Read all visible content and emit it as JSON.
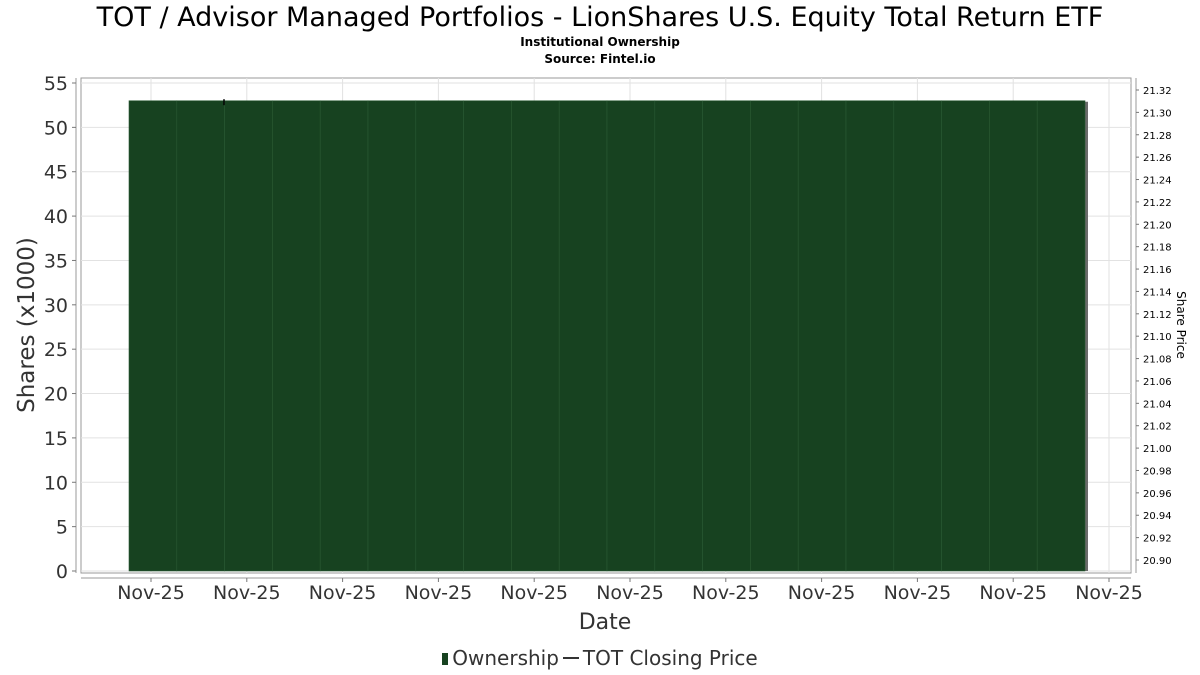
{
  "header": {
    "title": "TOT / Advisor Managed Portfolios - LionShares U.S. Equity Total Return ETF",
    "subtitle": "Institutional Ownership",
    "source": "Source: Fintel.io"
  },
  "legend": {
    "ownership_label": "Ownership",
    "price_label": "TOT Closing Price"
  },
  "colors": {
    "bar_fill": "#174220",
    "bar_shadow": "#6b6b6b",
    "grid": "#e2e2e2",
    "price_line": "#000000"
  },
  "chart_data": {
    "type": "bar",
    "title": "TOT / Advisor Managed Portfolios - LionShares U.S. Equity Total Return ETF",
    "subtitle": "Institutional Ownership",
    "xlabel": "Date",
    "ylabel": "Shares (x1000)",
    "y2label": "Share Price",
    "x_tick_labels": [
      "Nov-25",
      "Nov-25",
      "Nov-25",
      "Nov-25",
      "Nov-25",
      "Nov-25",
      "Nov-25",
      "Nov-25",
      "Nov-25",
      "Nov-25",
      "Nov-25"
    ],
    "ylim": [
      0,
      55
    ],
    "y_ticks": [
      0,
      5,
      10,
      15,
      20,
      25,
      30,
      35,
      40,
      45,
      50,
      55
    ],
    "y2lim": [
      20.89,
      21.33
    ],
    "y2_ticks": [
      "20.90",
      "20.92",
      "20.94",
      "20.96",
      "20.98",
      "21.00",
      "21.02",
      "21.04",
      "21.06",
      "21.08",
      "21.10",
      "21.12",
      "21.14",
      "21.16",
      "21.18",
      "21.20",
      "21.22",
      "21.24",
      "21.26",
      "21.28",
      "21.30",
      "21.32"
    ],
    "series": [
      {
        "name": "Ownership",
        "type": "bar",
        "values": [
          53,
          53,
          53,
          53,
          53,
          53,
          53,
          53,
          53,
          53,
          53,
          53,
          53,
          53,
          53,
          53,
          53,
          53,
          53,
          53
        ]
      },
      {
        "name": "TOT Closing Price",
        "type": "line",
        "values": [
          21.31
        ]
      }
    ],
    "grid": true,
    "legend_position": "bottom-center"
  }
}
